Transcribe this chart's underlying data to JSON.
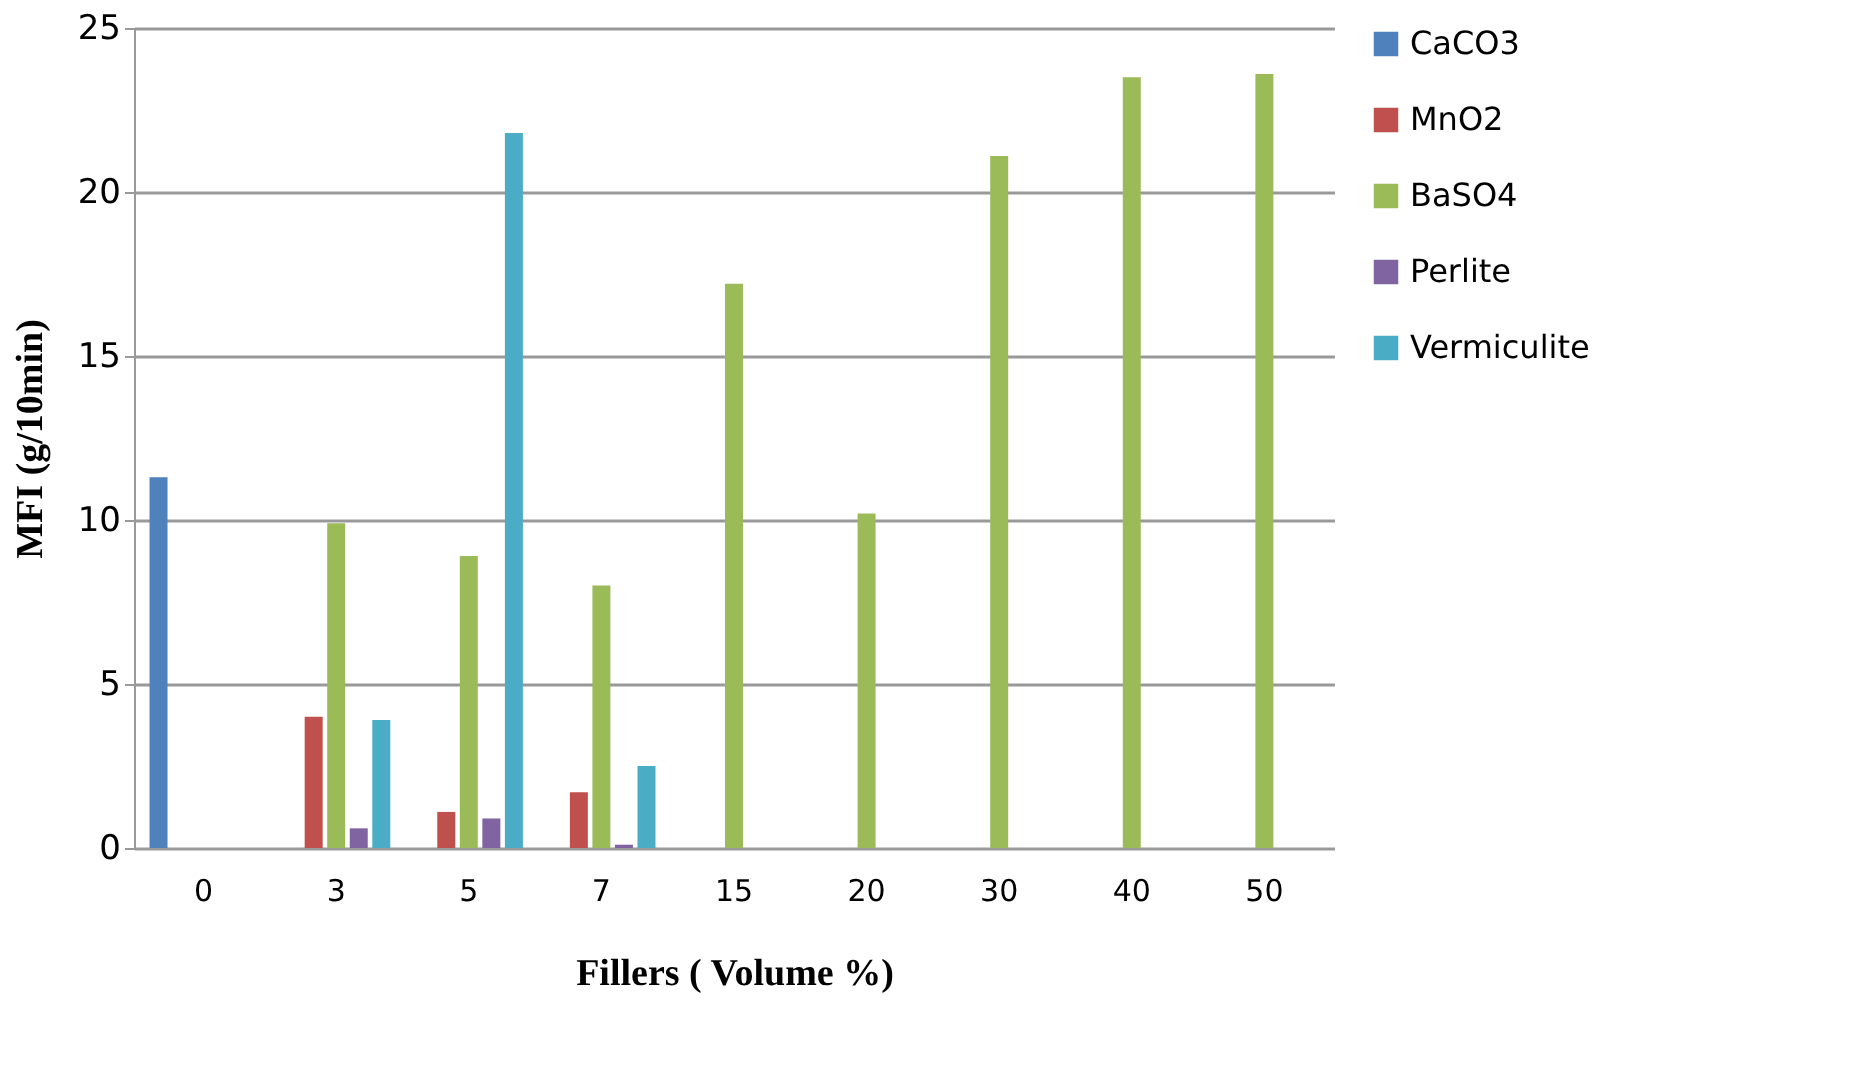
{
  "chart_data": {
    "type": "bar",
    "xlabel": "Fillers ( Volume %)",
    "ylabel": "MFI (g/10min)",
    "categories": [
      "0",
      "3",
      "5",
      "7",
      "15",
      "20",
      "30",
      "40",
      "50"
    ],
    "series": [
      {
        "name": "CaCO3",
        "color": "#4f81bd",
        "values": [
          11.3,
          null,
          null,
          null,
          null,
          null,
          null,
          null,
          null
        ]
      },
      {
        "name": "MnO2",
        "color": "#c0504d",
        "values": [
          null,
          4.0,
          1.1,
          1.7,
          null,
          null,
          null,
          null,
          null
        ]
      },
      {
        "name": "BaSO4",
        "color": "#9bbb59",
        "values": [
          null,
          9.9,
          8.9,
          8.0,
          17.2,
          10.2,
          21.1,
          23.5,
          23.6
        ]
      },
      {
        "name": "Perlite",
        "color": "#8064a2",
        "values": [
          null,
          0.6,
          0.9,
          0.1,
          null,
          null,
          null,
          null,
          null
        ]
      },
      {
        "name": "Vermiculite",
        "color": "#4bacc6",
        "values": [
          null,
          3.9,
          21.8,
          2.5,
          null,
          null,
          null,
          null,
          null
        ]
      }
    ],
    "ylim": [
      0,
      25
    ],
    "yticks": [
      0,
      5,
      10,
      15,
      20,
      25
    ],
    "grid": "y",
    "legend": "right"
  }
}
